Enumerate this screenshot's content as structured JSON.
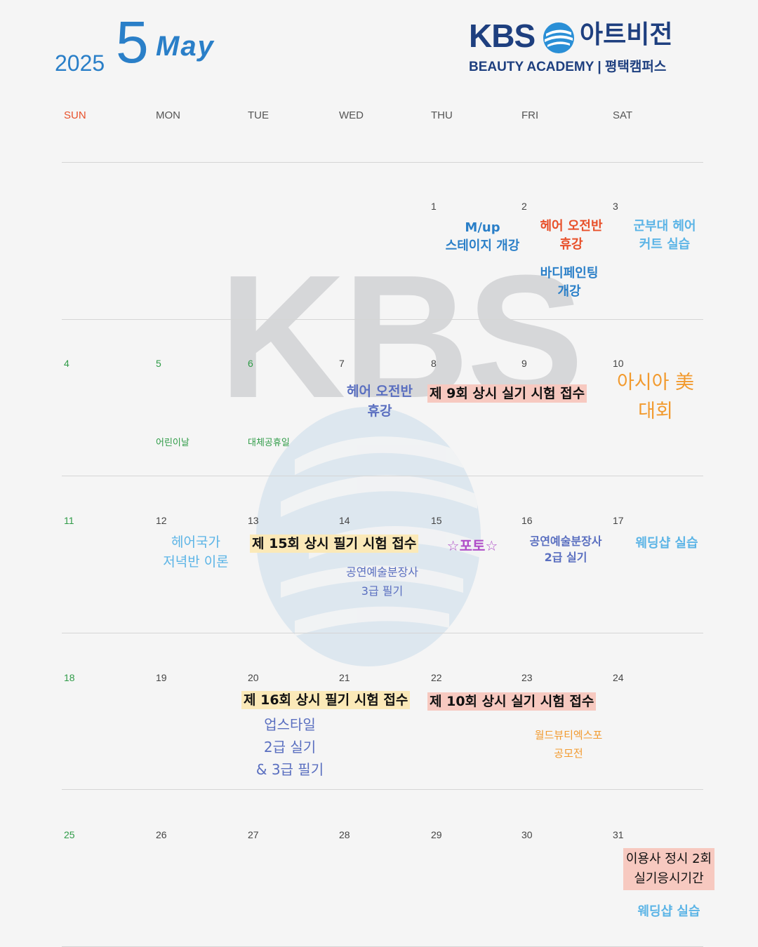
{
  "header": {
    "year": "2025",
    "month_number": "5",
    "month_name": "May",
    "brand_kbs": "KBS",
    "brand_name": "아트비전",
    "brand_sub": "BEAUTY ACADEMY  |  평택캠퍼스"
  },
  "watermark": "KBS",
  "weekdays": [
    "SUN",
    "MON",
    "TUE",
    "WED",
    "THU",
    "FRI",
    "SAT"
  ],
  "days": [
    "1",
    "2",
    "3",
    "4",
    "5",
    "6",
    "7",
    "8",
    "9",
    "10",
    "11",
    "12",
    "13",
    "14",
    "15",
    "16",
    "17",
    "18",
    "19",
    "20",
    "21",
    "22",
    "23",
    "24",
    "25",
    "26",
    "27",
    "28",
    "29",
    "30",
    "31"
  ],
  "holidays": {
    "d5": "어린이날",
    "d6": "대체공휴일"
  },
  "events": {
    "d1_l1": "M/up",
    "d1_l2": "스테이지 개강",
    "d2_a1": "헤어 오전반",
    "d2_a2": "휴강",
    "d2_b1": "바디페인팅",
    "d2_b2": "개강",
    "d3_l1": "군부대 헤어",
    "d3_l2": "커트 실습",
    "d7_l1": "헤어 오전반",
    "d7_l2": "휴강",
    "d8_banner": "제 9회 상시 실기 시험 접수",
    "d10_l1": "아시아 美",
    "d10_l2": "대회",
    "d12_l1": "헤어국가",
    "d12_l2": "저녁반 이론",
    "d13_banner": "제 15회 상시 필기 시험 접수",
    "d14_l1": "공연예술분장사",
    "d14_l2": "3급 필기",
    "d15": "☆포토☆",
    "d16_l1": "공연예술분장사",
    "d16_l2": "2급 실기",
    "d17": "웨딩샵 실습",
    "d20_banner": "제 16회 상시 필기 시험 접수",
    "d20_l1": "업스타일",
    "d20_l2": "2급 실기",
    "d20_l3": "& 3급 필기",
    "d22_banner": "제 10회 상시 실기 시험 접수",
    "d23_l1": "월드뷰티엑스포",
    "d23_l2": "공모전",
    "d31_l1": "이용사 정시 2회",
    "d31_l2": "실기응시기간",
    "d31_b": "웨딩샵 실습"
  },
  "colors": {
    "primary": "#2a7fc8",
    "navy": "#1e3f7f",
    "sunday": "#e8502a",
    "holiday": "#2f9b47",
    "red_event": "#e8502a",
    "orange_event": "#f29a2e",
    "light_blue": "#5bb4e6",
    "indigo": "#5a6fc0",
    "purple": "#b04fc8",
    "pink_highlight": "#f7c9c0",
    "yellow_highlight": "#fbe9b8"
  },
  "icons": [
    "kbs-globe-icon",
    "star-icon"
  ]
}
